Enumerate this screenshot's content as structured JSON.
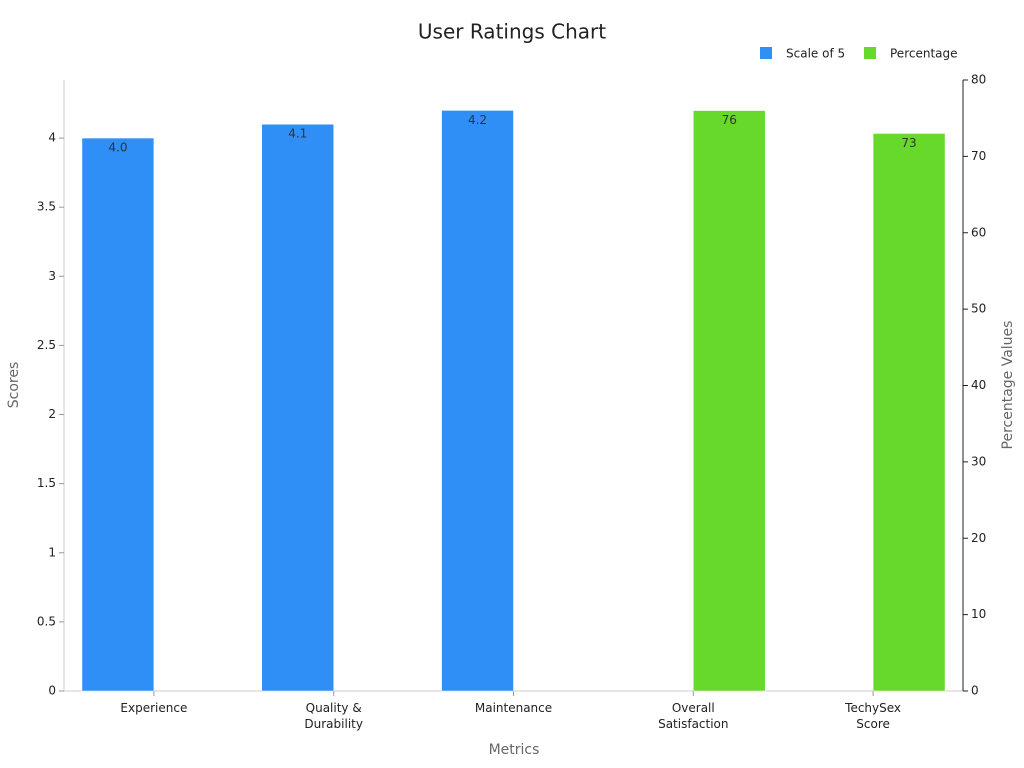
{
  "chart_data": {
    "type": "bar",
    "title": "User Ratings Chart",
    "x_label": "Metrics",
    "y_label": "Scores",
    "y2_label": "Percentage Values",
    "categories": [
      "Experience",
      "Quality &\nDurability",
      "Maintenance",
      "Overall\nSatisfaction",
      "TechySex\nScore"
    ],
    "series": [
      {
        "name": "Scale of 5",
        "color": "#2f8ff7",
        "values": [
          4.0,
          4.1,
          4.2,
          null,
          null
        ],
        "value_labels": [
          "4.0",
          "4.1",
          "4.2",
          null,
          null
        ]
      },
      {
        "name": "Percentage",
        "color": "#66d92a",
        "axis": "y2",
        "values": [
          null,
          null,
          null,
          76,
          73
        ]
      }
    ],
    "ylim": [
      0,
      4.42
    ],
    "yticks": [
      0,
      0.5,
      1,
      1.5,
      2,
      2.5,
      3,
      3.5,
      4
    ],
    "y2lim": [
      0,
      80
    ],
    "y2ticks": [
      0,
      10,
      20,
      30,
      40,
      50,
      60,
      70,
      80
    ],
    "legend": "top-right",
    "grid": false
  }
}
